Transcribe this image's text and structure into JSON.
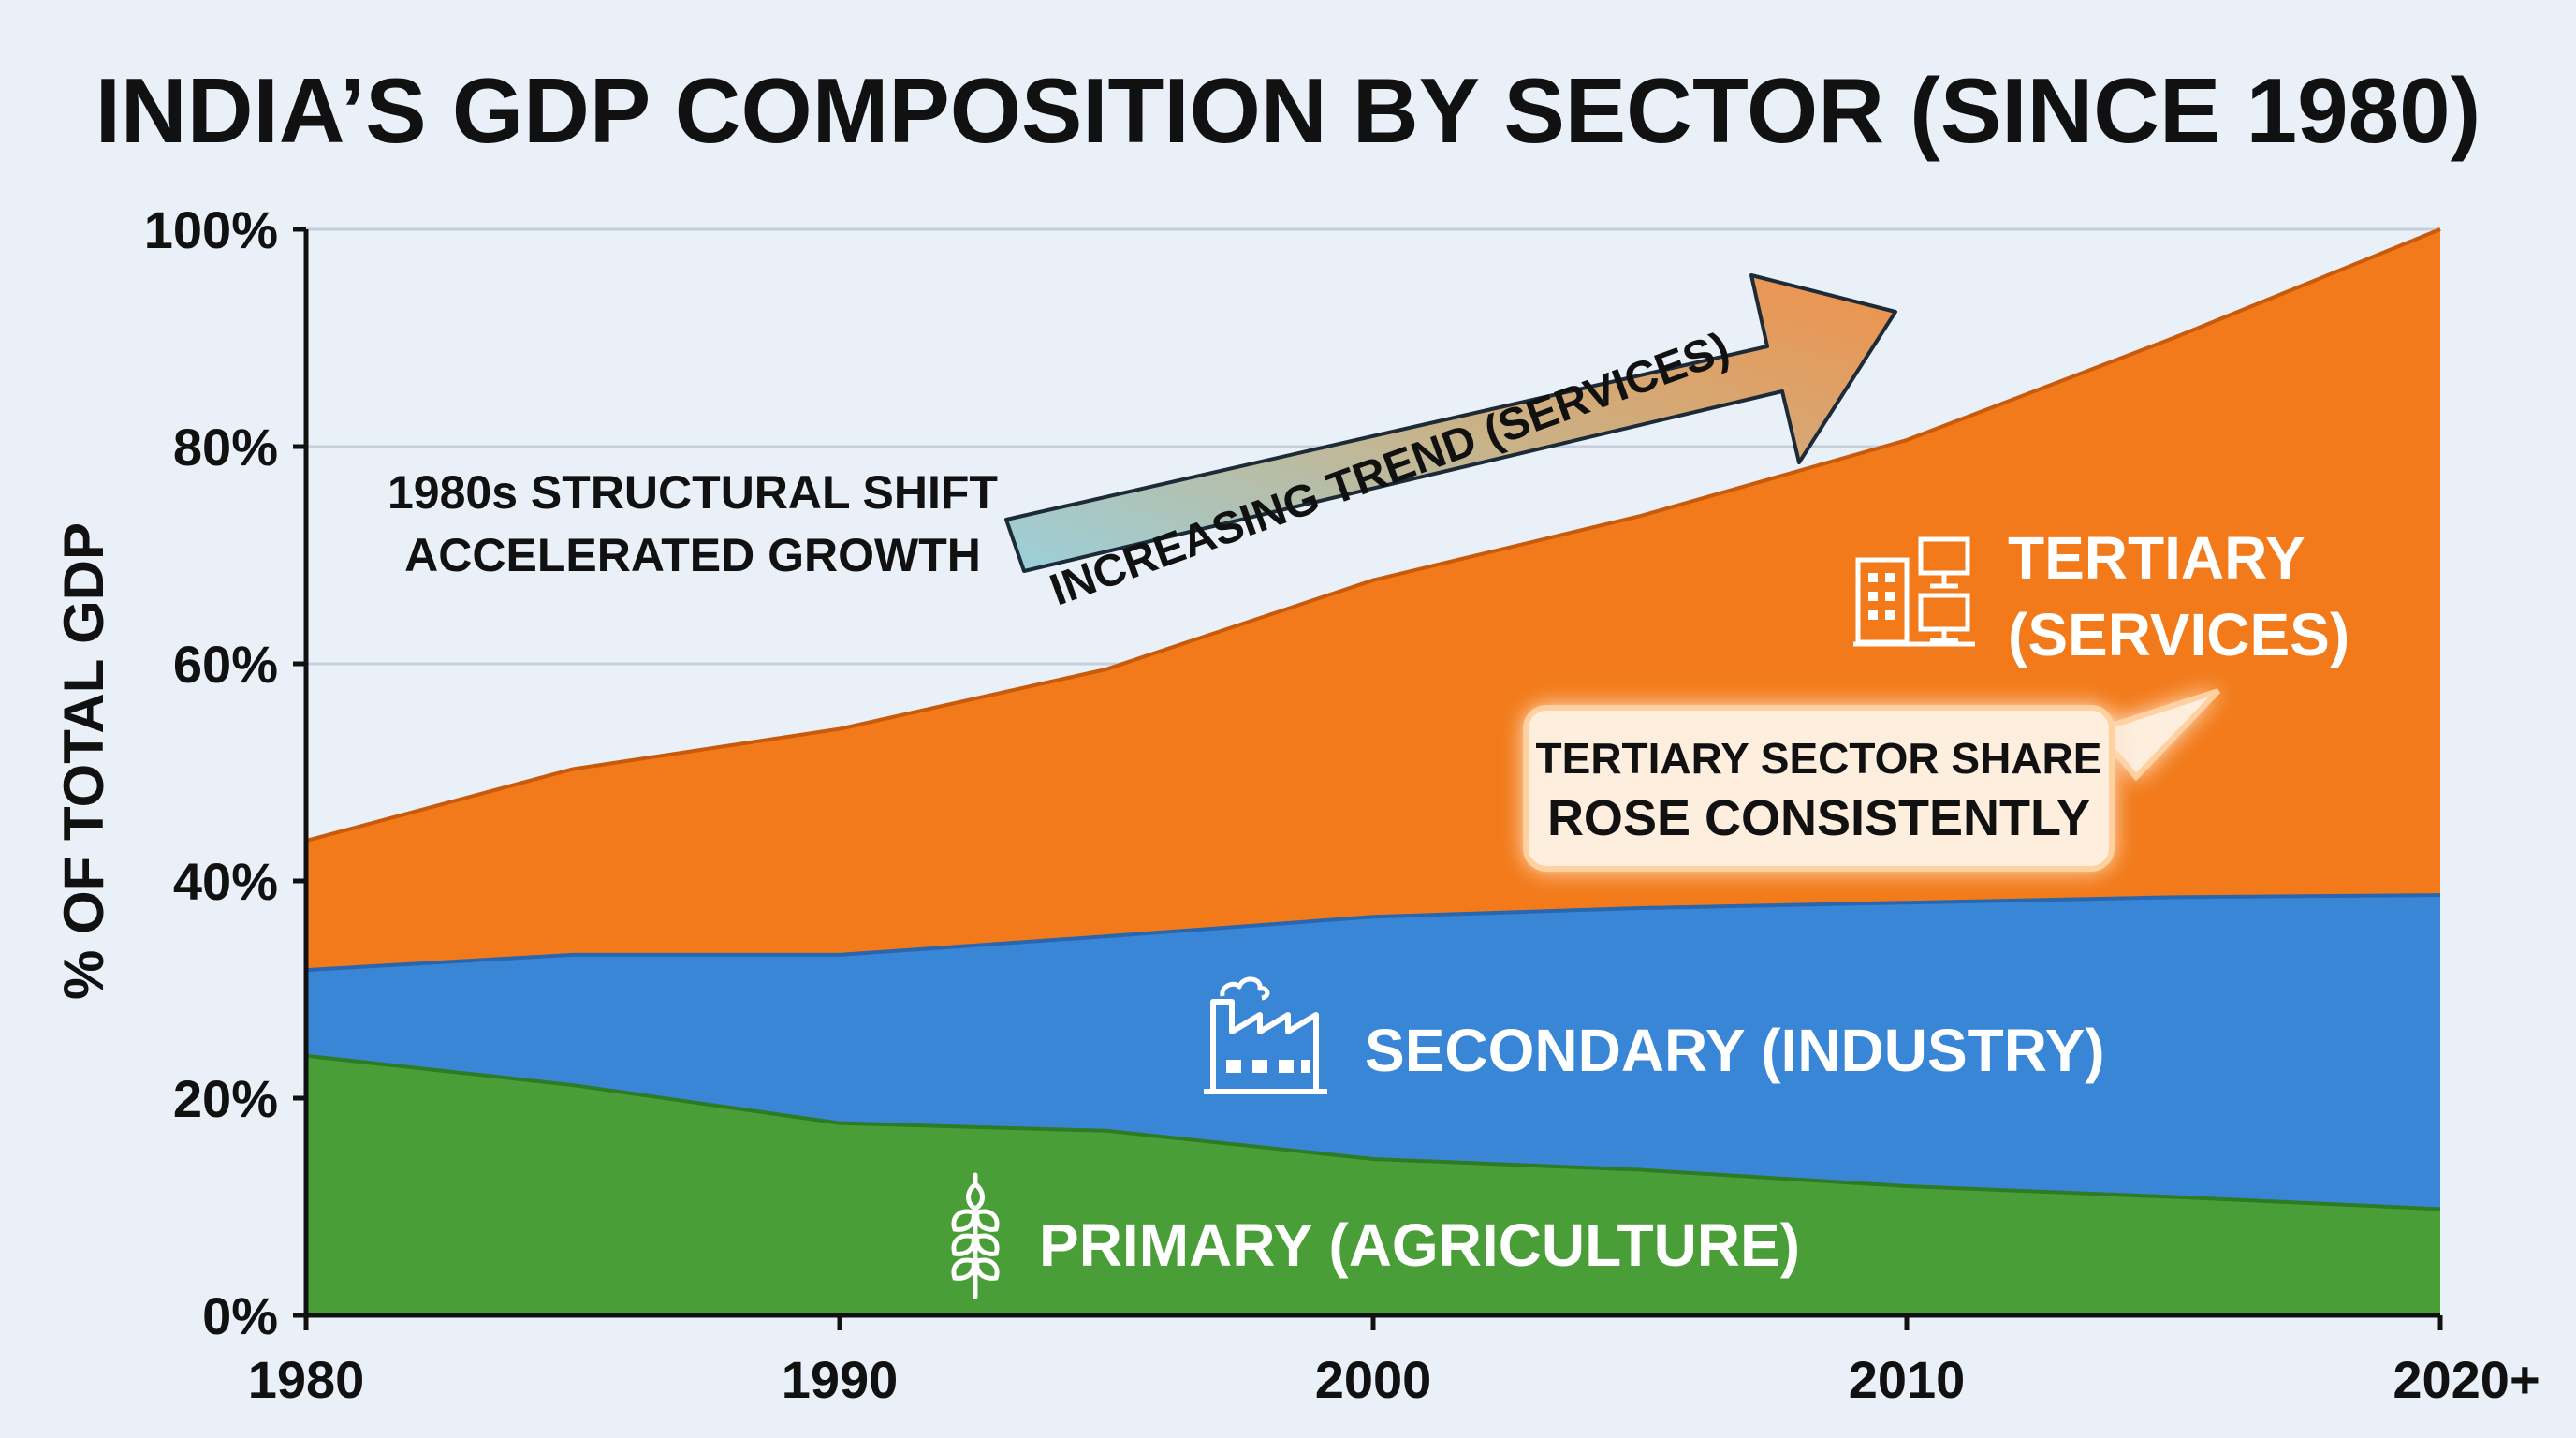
{
  "colors": {
    "background": "#e9f0f8",
    "primary": "#4a9e37",
    "secondary": "#3a86d6",
    "tertiary": "#f27a1a",
    "axis": "#111111",
    "grid": "#c5cfdc"
  },
  "icons": {
    "primary": "wheat-icon",
    "secondary": "factory-icon",
    "tertiary": "office-computer-icon"
  },
  "annotations": {
    "structural_shift_line1": "1980s STRUCTURAL SHIFT",
    "structural_shift_line2": "ACCELERATED GROWTH",
    "trend_arrow": "INCREASING TREND (SERVICES)",
    "callout_line1": "TERTIARY SECTOR SHARE",
    "callout_line2": "ROSE CONSISTENTLY"
  },
  "chart_data": {
    "type": "area",
    "stacked": true,
    "title": "INDIA’S GDP COMPOSITION BY SECTOR (SINCE 1980)",
    "xlabel": "",
    "ylabel": "% OF TOTAL GDP",
    "x": [
      1980,
      1985,
      1990,
      1995,
      2000,
      2005,
      2010,
      2015,
      2020
    ],
    "x_ticks": [
      1980,
      1990,
      2000,
      2010,
      2020
    ],
    "x_tick_labels": [
      "1980",
      "1990",
      "2000",
      "2010",
      "2020+"
    ],
    "y_ticks": [
      0,
      20,
      40,
      60,
      80,
      100
    ],
    "y_tick_labels": [
      "0%",
      "20%",
      "40%",
      "60%",
      "80%",
      "100%"
    ],
    "xlim": [
      1980,
      2020
    ],
    "ylim": [
      0,
      100
    ],
    "grid": true,
    "series": [
      {
        "name": "PRIMARY (AGRICULTURE)",
        "values": [
          23.9,
          21.2,
          17.7,
          17.0,
          14.4,
          13.4,
          11.9,
          10.9,
          9.8
        ]
      },
      {
        "name": "SECONDARY (INDUSTRY)",
        "values": [
          7.9,
          12.0,
          15.5,
          17.9,
          22.3,
          24.1,
          26.1,
          27.6,
          28.9
        ]
      },
      {
        "name_line1": "TERTIARY",
        "name_line2": "(SERVICES)",
        "values": [
          11.9,
          17.1,
          20.8,
          24.6,
          31.0,
          36.1,
          42.6,
          51.5,
          61.3
        ]
      }
    ]
  }
}
